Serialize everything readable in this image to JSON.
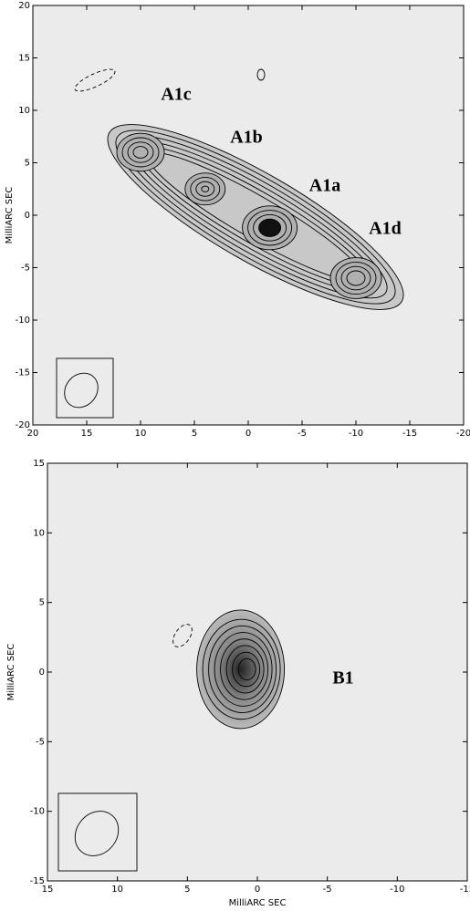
{
  "chart_data": [
    {
      "type": "contour",
      "ylabel": "MilliARC SEC",
      "xlim": [
        20,
        -20
      ],
      "xticks": [
        20,
        15,
        10,
        5,
        0,
        -5,
        -10,
        -15,
        -20
      ],
      "ylim": [
        -20,
        20
      ],
      "yticks": [
        20,
        15,
        10,
        5,
        0,
        -5,
        -10,
        -15,
        -20
      ],
      "annotations": [
        "A1c",
        "A1b",
        "A1a",
        "A1d"
      ]
    },
    {
      "type": "contour",
      "ylabel": "MilliARC SEC",
      "xlabel": "MilliARC SEC",
      "xlim": [
        15,
        -15
      ],
      "xticks": [
        15,
        10,
        5,
        0,
        -5,
        -10,
        -15
      ],
      "ylim": [
        -15,
        15
      ],
      "yticks": [
        15,
        10,
        5,
        0,
        -5,
        -10,
        -15
      ],
      "annotations": [
        "B1"
      ]
    }
  ]
}
